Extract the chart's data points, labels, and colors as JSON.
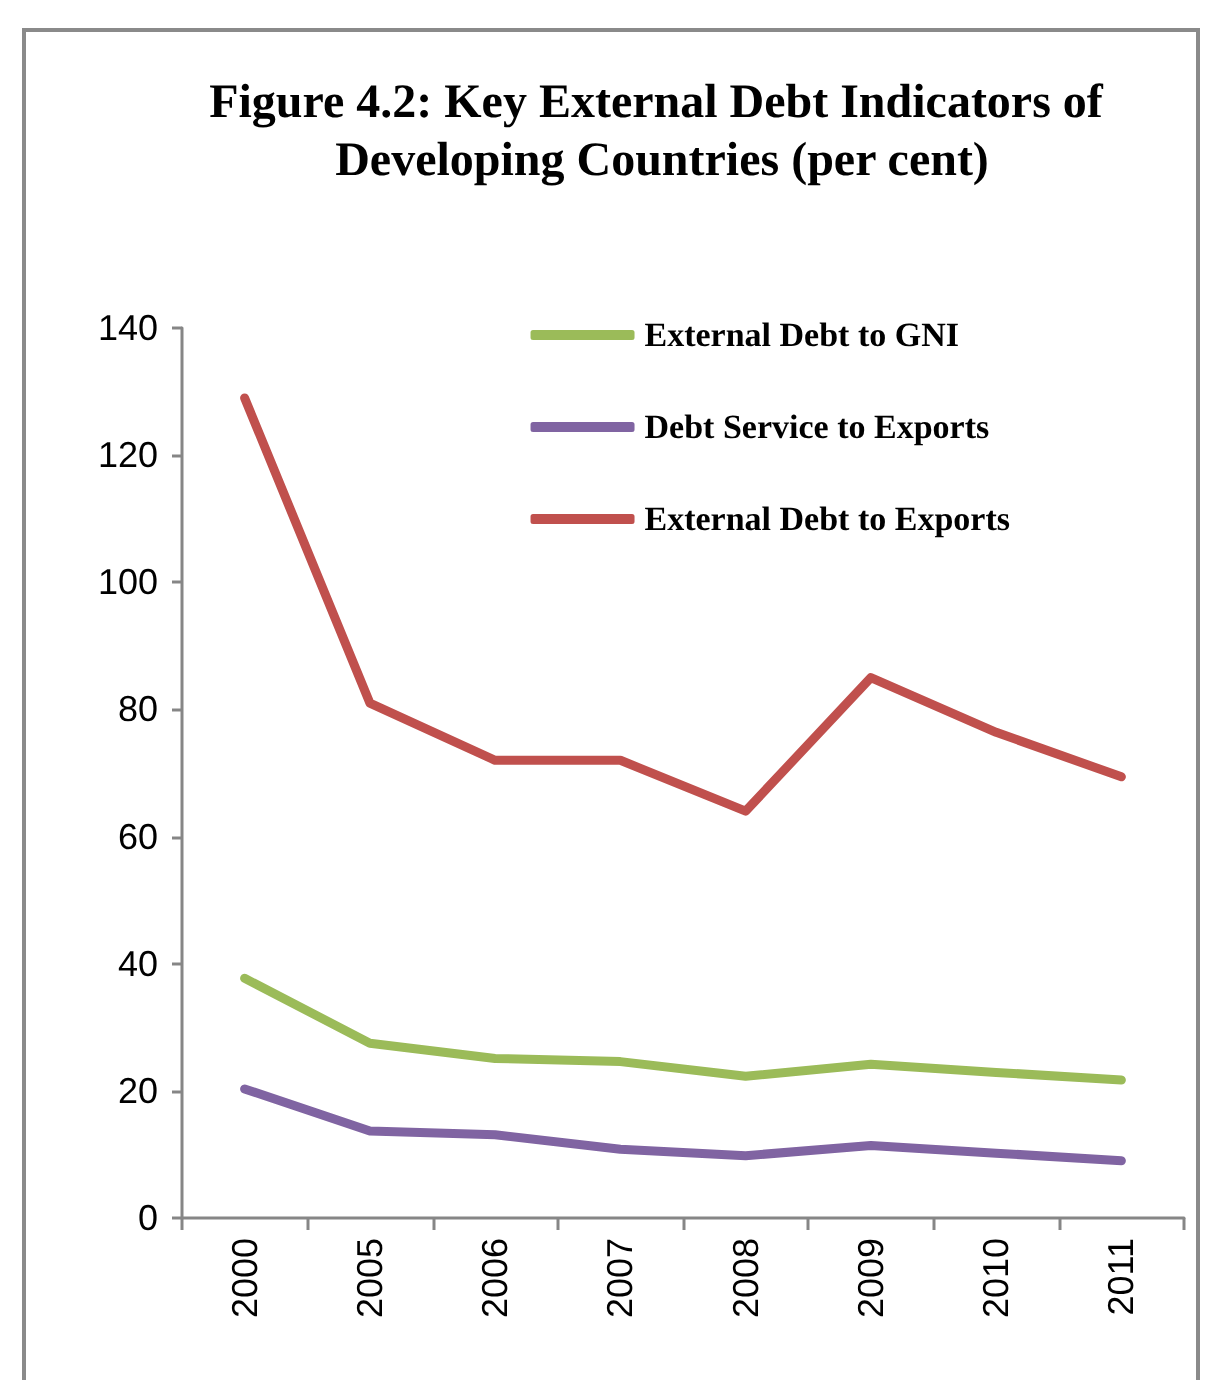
{
  "chart_data": {
    "type": "line",
    "title": "Figure 4.2: Key External Debt Indicators of Developing Countries (per cent)",
    "categories": [
      "2000",
      "2005",
      "2006",
      "2007",
      "2008",
      "2009",
      "2010",
      "2011"
    ],
    "series": [
      {
        "name": "External Debt to GNI",
        "color": "#9bbb59",
        "values": [
          37.7,
          27.5,
          25.1,
          24.6,
          22.3,
          24.2,
          22.9,
          21.7
        ]
      },
      {
        "name": "Debt Service to Exports",
        "color": "#8064a2",
        "values": [
          20.3,
          13.7,
          13.1,
          10.8,
          9.8,
          11.4,
          10.2,
          9.0
        ]
      },
      {
        "name": "External Debt to Exports",
        "color": "#c0504d",
        "values": [
          129,
          81,
          72,
          72,
          64,
          85,
          76.4,
          69.4
        ]
      }
    ],
    "ylim": [
      0,
      140
    ],
    "yticks": [
      0,
      20,
      40,
      60,
      80,
      100,
      120,
      140
    ],
    "grid": false,
    "legend": "top right",
    "marker": "none",
    "line_style": "solid"
  }
}
